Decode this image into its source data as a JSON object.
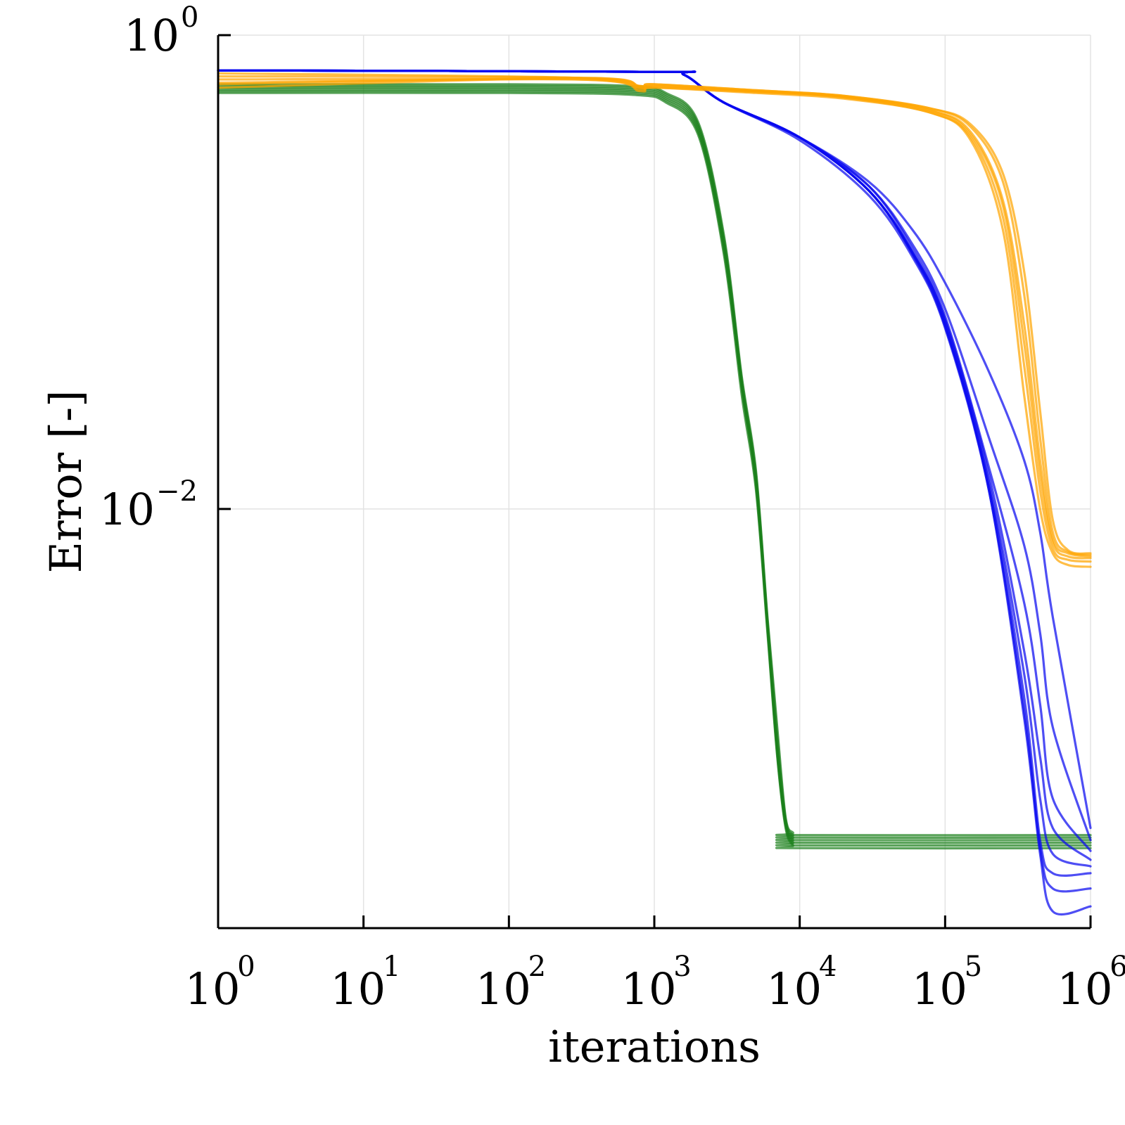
{
  "chart_data": {
    "type": "line",
    "xlabel": "iterations",
    "ylabel": "Error [-]",
    "x_scale": "log",
    "y_scale": "log",
    "xlim": [
      1,
      1000000
    ],
    "ylim": [
      0.00017,
      1
    ],
    "grid": true,
    "legend": "none",
    "x_ticks": [
      {
        "value": 1,
        "base": "10",
        "exp": "0"
      },
      {
        "value": 10,
        "base": "10",
        "exp": "1"
      },
      {
        "value": 100,
        "base": "10",
        "exp": "2"
      },
      {
        "value": 1000,
        "base": "10",
        "exp": "3"
      },
      {
        "value": 10000,
        "base": "10",
        "exp": "4"
      },
      {
        "value": 100000,
        "base": "10",
        "exp": "5"
      },
      {
        "value": 1000000,
        "base": "10",
        "exp": "6"
      }
    ],
    "y_ticks": [
      {
        "value": 1,
        "base": "10",
        "exp": "0"
      },
      {
        "value": 0.01,
        "base": "10",
        "exp": "−2"
      }
    ],
    "series": [
      {
        "group": "green",
        "color": "#1a7f1a",
        "x": [
          1,
          100,
          700,
          1200,
          2000,
          3000,
          4000,
          5000,
          6000,
          7000,
          8000,
          9000,
          10000,
          1000000
        ],
        "y": [
          0.57,
          0.57,
          0.56,
          0.52,
          0.38,
          0.12,
          0.03,
          0.012,
          0.003,
          0.0009,
          0.00045,
          0.00038,
          0.00037,
          0.00037
        ]
      },
      {
        "group": "green",
        "color": "#1a7f1a",
        "x": [
          1,
          100,
          700,
          1200,
          2000,
          3000,
          4000,
          5000,
          6000,
          7000,
          8000,
          9000,
          10000,
          1000000
        ],
        "y": [
          0.58,
          0.58,
          0.57,
          0.53,
          0.39,
          0.125,
          0.032,
          0.0125,
          0.0031,
          0.00092,
          0.00046,
          0.00039,
          0.00038,
          0.00038
        ]
      },
      {
        "group": "green",
        "color": "#1a7f1a",
        "x": [
          1,
          100,
          700,
          1200,
          2000,
          3000,
          4000,
          5000,
          6000,
          7000,
          8000,
          9000,
          10000,
          1000000
        ],
        "y": [
          0.59,
          0.59,
          0.58,
          0.54,
          0.4,
          0.13,
          0.033,
          0.013,
          0.0032,
          0.00095,
          0.00047,
          0.0004,
          0.00039,
          0.00039
        ]
      },
      {
        "group": "green",
        "color": "#1a7f1a",
        "x": [
          1,
          100,
          700,
          1200,
          2000,
          3000,
          4000,
          5000,
          6000,
          7000,
          8000,
          9000,
          10000,
          1000000
        ],
        "y": [
          0.6,
          0.6,
          0.59,
          0.55,
          0.41,
          0.135,
          0.034,
          0.0135,
          0.0033,
          0.001,
          0.00048,
          0.00041,
          0.0004,
          0.0004
        ]
      },
      {
        "group": "green",
        "color": "#1a7f1a",
        "x": [
          1,
          100,
          700,
          1200,
          2000,
          3000,
          4000,
          5000,
          6000,
          7000,
          8000,
          9000,
          10000,
          1000000
        ],
        "y": [
          0.61,
          0.61,
          0.6,
          0.56,
          0.42,
          0.14,
          0.035,
          0.014,
          0.0034,
          0.0011,
          0.00049,
          0.00042,
          0.00041,
          0.00041
        ]
      },
      {
        "group": "green",
        "color": "#1a7f1a",
        "x": [
          1,
          100,
          700,
          1200,
          2000,
          3000,
          4000,
          5000,
          6000,
          7000,
          8000,
          9000,
          10000,
          1000000
        ],
        "y": [
          0.62,
          0.62,
          0.61,
          0.57,
          0.43,
          0.145,
          0.036,
          0.0145,
          0.0035,
          0.0012,
          0.0005,
          0.00043,
          0.00042,
          0.00042
        ]
      },
      {
        "group": "blue",
        "color": "#0a0af0",
        "x": [
          1,
          1000,
          1600,
          3000,
          10000,
          30000,
          60000,
          100000,
          200000,
          350000,
          450000,
          550000,
          1000000
        ],
        "y": [
          0.71,
          0.7,
          0.68,
          0.52,
          0.37,
          0.22,
          0.12,
          0.06,
          0.012,
          0.0013,
          0.00035,
          0.0002,
          0.00021
        ]
      },
      {
        "group": "blue",
        "color": "#0a0af0",
        "x": [
          1,
          1000,
          1600,
          3000,
          10000,
          30000,
          60000,
          100000,
          200000,
          350000,
          450000,
          550000,
          1000000
        ],
        "y": [
          0.71,
          0.7,
          0.68,
          0.52,
          0.36,
          0.21,
          0.115,
          0.058,
          0.012,
          0.0014,
          0.00037,
          0.00025,
          0.00025
        ]
      },
      {
        "group": "blue",
        "color": "#0a0af0",
        "x": [
          1,
          1000,
          1600,
          3000,
          10000,
          30000,
          60000,
          100000,
          200000,
          350000,
          450000,
          550000,
          1000000
        ],
        "y": [
          0.71,
          0.7,
          0.68,
          0.52,
          0.37,
          0.22,
          0.118,
          0.059,
          0.0125,
          0.0016,
          0.0004,
          0.00029,
          0.00029
        ]
      },
      {
        "group": "blue",
        "color": "#0a0af0",
        "x": [
          1,
          1000,
          1600,
          3000,
          10000,
          30000,
          60000,
          100000,
          200000,
          350000,
          450000,
          550000,
          1000000
        ],
        "y": [
          0.71,
          0.7,
          0.68,
          0.52,
          0.37,
          0.22,
          0.12,
          0.062,
          0.013,
          0.002,
          0.0006,
          0.00035,
          0.00031
        ]
      },
      {
        "group": "blue",
        "color": "#0a0af0",
        "x": [
          1,
          1000,
          1600,
          3000,
          10000,
          30000,
          60000,
          100000,
          200000,
          350000,
          450000,
          550000,
          1000000
        ],
        "y": [
          0.71,
          0.7,
          0.68,
          0.52,
          0.37,
          0.22,
          0.12,
          0.063,
          0.014,
          0.0025,
          0.0009,
          0.00045,
          0.00033
        ]
      },
      {
        "group": "blue",
        "color": "#0a0af0",
        "x": [
          1,
          1000,
          1600,
          3000,
          10000,
          30000,
          60000,
          100000,
          200000,
          350000,
          450000,
          550000,
          1000000
        ],
        "y": [
          0.71,
          0.7,
          0.68,
          0.52,
          0.37,
          0.23,
          0.125,
          0.065,
          0.015,
          0.004,
          0.0015,
          0.0006,
          0.00036
        ]
      },
      {
        "group": "blue",
        "color": "#0a0af0",
        "x": [
          1,
          1000,
          1600,
          3000,
          10000,
          30000,
          60000,
          100000,
          200000,
          350000,
          450000,
          550000,
          1000000
        ],
        "y": [
          0.71,
          0.7,
          0.68,
          0.52,
          0.37,
          0.23,
          0.13,
          0.07,
          0.02,
          0.007,
          0.003,
          0.0012,
          0.0004
        ]
      },
      {
        "group": "blue",
        "color": "#0a0af0",
        "x": [
          1,
          1000,
          1600,
          3000,
          10000,
          30000,
          60000,
          100000,
          200000,
          350000,
          450000,
          550000,
          1000000
        ],
        "y": [
          0.71,
          0.7,
          0.68,
          0.52,
          0.37,
          0.24,
          0.15,
          0.09,
          0.038,
          0.016,
          0.008,
          0.0035,
          0.00045
        ]
      },
      {
        "group": "orange",
        "color": "#ffa500",
        "x": [
          1,
          300,
          800,
          1000,
          5000,
          20000,
          80000,
          150000,
          250000,
          350000,
          450000,
          550000,
          700000,
          1000000
        ],
        "y": [
          0.63,
          0.65,
          0.58,
          0.6,
          0.57,
          0.54,
          0.47,
          0.36,
          0.15,
          0.03,
          0.01,
          0.0065,
          0.0058,
          0.0057
        ]
      },
      {
        "group": "orange",
        "color": "#ffa500",
        "x": [
          1,
          300,
          800,
          1000,
          5000,
          20000,
          80000,
          150000,
          250000,
          350000,
          450000,
          550000,
          700000,
          1000000
        ],
        "y": [
          0.65,
          0.65,
          0.59,
          0.6,
          0.575,
          0.545,
          0.47,
          0.37,
          0.17,
          0.04,
          0.012,
          0.0068,
          0.0061,
          0.006
        ]
      },
      {
        "group": "orange",
        "color": "#ffa500",
        "x": [
          1,
          300,
          800,
          1000,
          5000,
          20000,
          80000,
          150000,
          250000,
          350000,
          450000,
          550000,
          700000,
          1000000
        ],
        "y": [
          0.67,
          0.66,
          0.6,
          0.61,
          0.58,
          0.55,
          0.48,
          0.38,
          0.19,
          0.05,
          0.014,
          0.0072,
          0.0063,
          0.0062
        ]
      },
      {
        "group": "orange",
        "color": "#ffa500",
        "x": [
          1,
          300,
          800,
          1000,
          5000,
          20000,
          80000,
          150000,
          250000,
          350000,
          450000,
          550000,
          700000,
          1000000
        ],
        "y": [
          0.69,
          0.66,
          0.6,
          0.61,
          0.58,
          0.55,
          0.48,
          0.39,
          0.2,
          0.06,
          0.016,
          0.0075,
          0.0065,
          0.0063
        ]
      },
      {
        "group": "orange",
        "color": "#ffa500",
        "x": [
          1,
          300,
          800,
          1000,
          5000,
          20000,
          80000,
          150000,
          250000,
          350000,
          450000,
          550000,
          700000,
          1000000
        ],
        "y": [
          0.6,
          0.66,
          0.61,
          0.62,
          0.585,
          0.555,
          0.49,
          0.41,
          0.24,
          0.08,
          0.02,
          0.008,
          0.0066,
          0.0064
        ]
      },
      {
        "group": "orange",
        "color": "#ffa500",
        "x": [
          1,
          300,
          800,
          1000,
          5000,
          20000,
          80000,
          150000,
          250000,
          350000,
          450000,
          550000,
          700000,
          1000000
        ],
        "y": [
          0.62,
          0.66,
          0.61,
          0.62,
          0.585,
          0.555,
          0.49,
          0.42,
          0.26,
          0.1,
          0.026,
          0.009,
          0.0067,
          0.0065
        ]
      }
    ]
  }
}
